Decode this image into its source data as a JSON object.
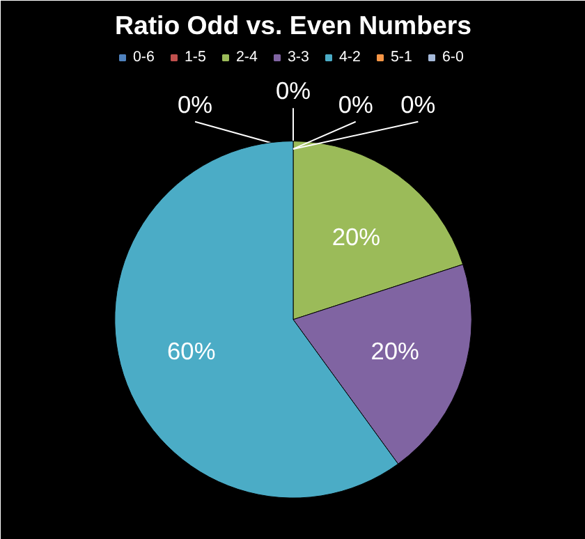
{
  "chart_data": {
    "type": "pie",
    "title": "Ratio Odd vs. Even Numbers",
    "categories": [
      "0-6",
      "1-5",
      "2-4",
      "3-3",
      "4-2",
      "5-1",
      "6-0"
    ],
    "values": [
      0,
      0,
      20,
      20,
      60,
      0,
      0
    ],
    "colors": [
      "#4f81bd",
      "#c0504d",
      "#9bbb59",
      "#8064a2",
      "#4bacc6",
      "#f79646",
      "#a5b9d9"
    ],
    "value_labels": [
      "0%",
      "0%",
      "20%",
      "20%",
      "60%",
      "0%",
      "0%"
    ],
    "legend": "top"
  }
}
